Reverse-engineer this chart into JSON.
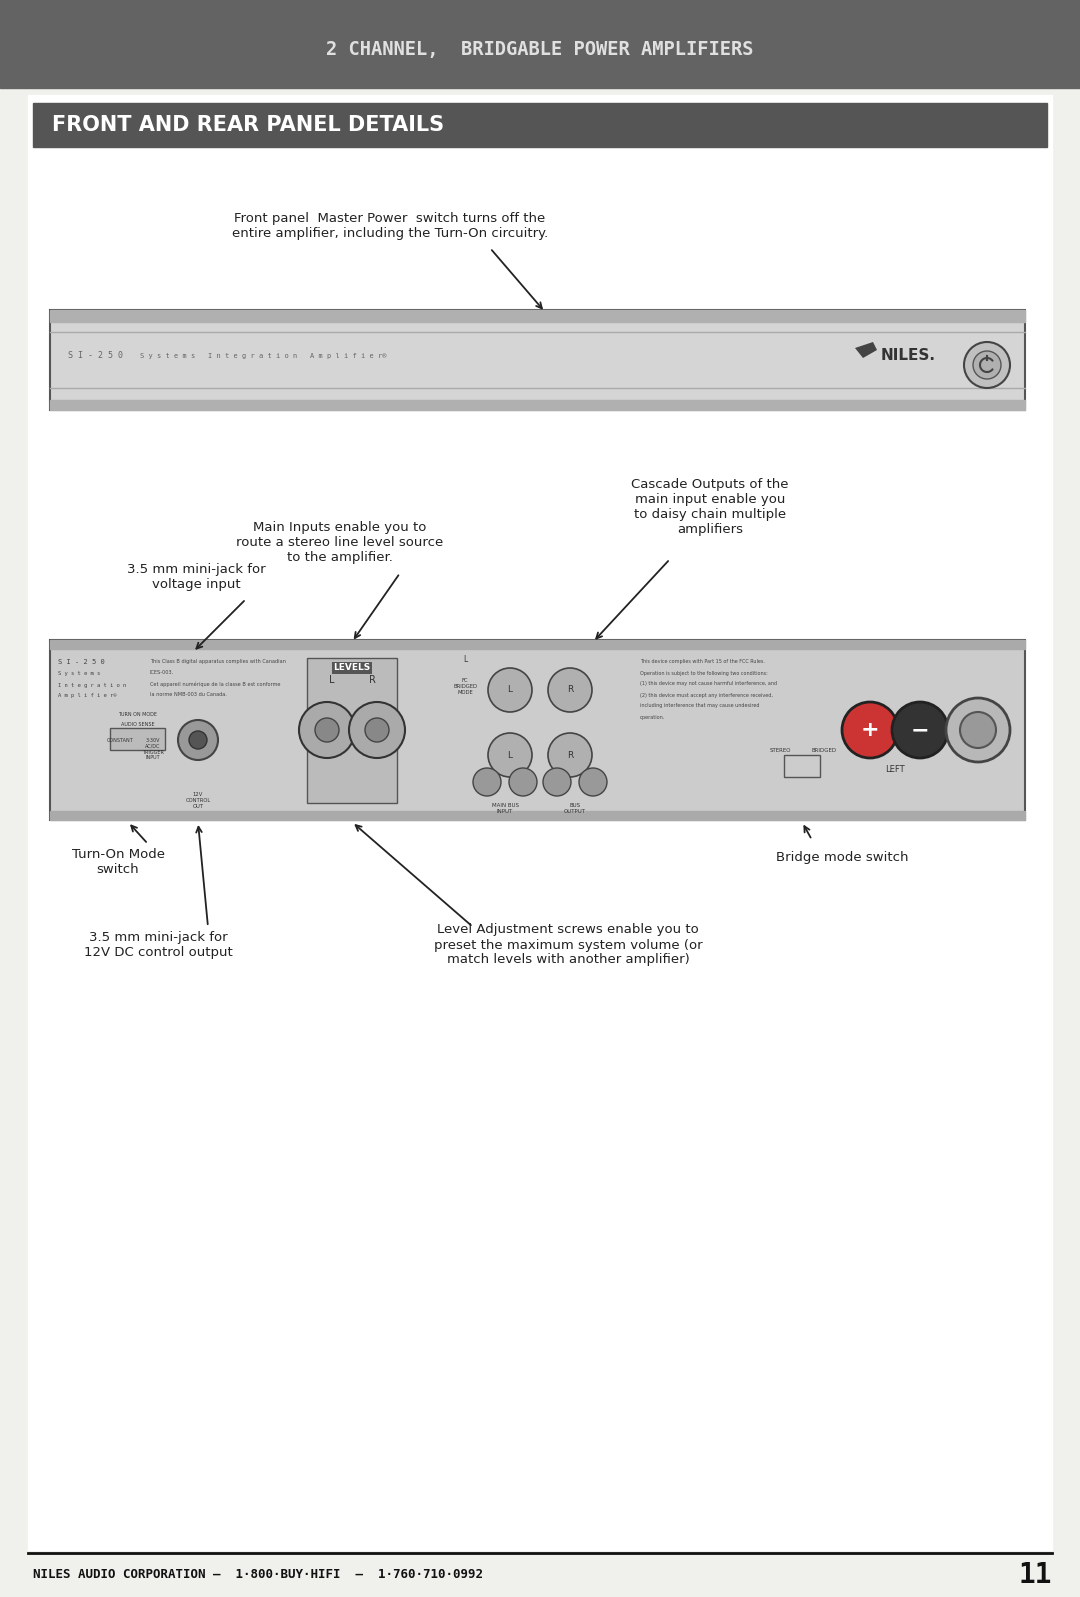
{
  "page_bg": "#f0f0ed",
  "header_bg": "#636363",
  "header_text": "2 CHANNEL,  BRIDGABLE POWER AMPLIFIERS",
  "header_text_color": "#e0e0e0",
  "section_bg": "#555555",
  "section_text": "FRONT AND REAR PANEL DETAILS",
  "section_text_color": "#ffffff",
  "footer_text": "NILES AUDIO CORPORATION –  1·800·BUY·HIFI  –  1·760·710·0992",
  "footer_page": "11",
  "front_panel_label": "Front panel  Master Power  switch turns off the\nentire ampliﬁer, including the Turn-On circuitry.",
  "main_inputs_label": "Main Inputs enable you to\nroute a stereo line level source\nto the ampliﬁer.",
  "cascade_label": "Cascade Outputs of the\nmain input enable you\nto daisy chain multiple\nampliﬁers",
  "mini_jack_label": "3.5 mm mini-jack for\nvoltage input",
  "turn_on_label": "Turn-On Mode\nswitch",
  "bridge_label": "Bridge mode switch",
  "dc_control_label": "3.5 mm mini-jack for\n12V DC control output",
  "level_adj_label": "Level Adjustment screws enable you to\npreset the maximum system volume (or\nmatch levels with another ampliﬁer)"
}
